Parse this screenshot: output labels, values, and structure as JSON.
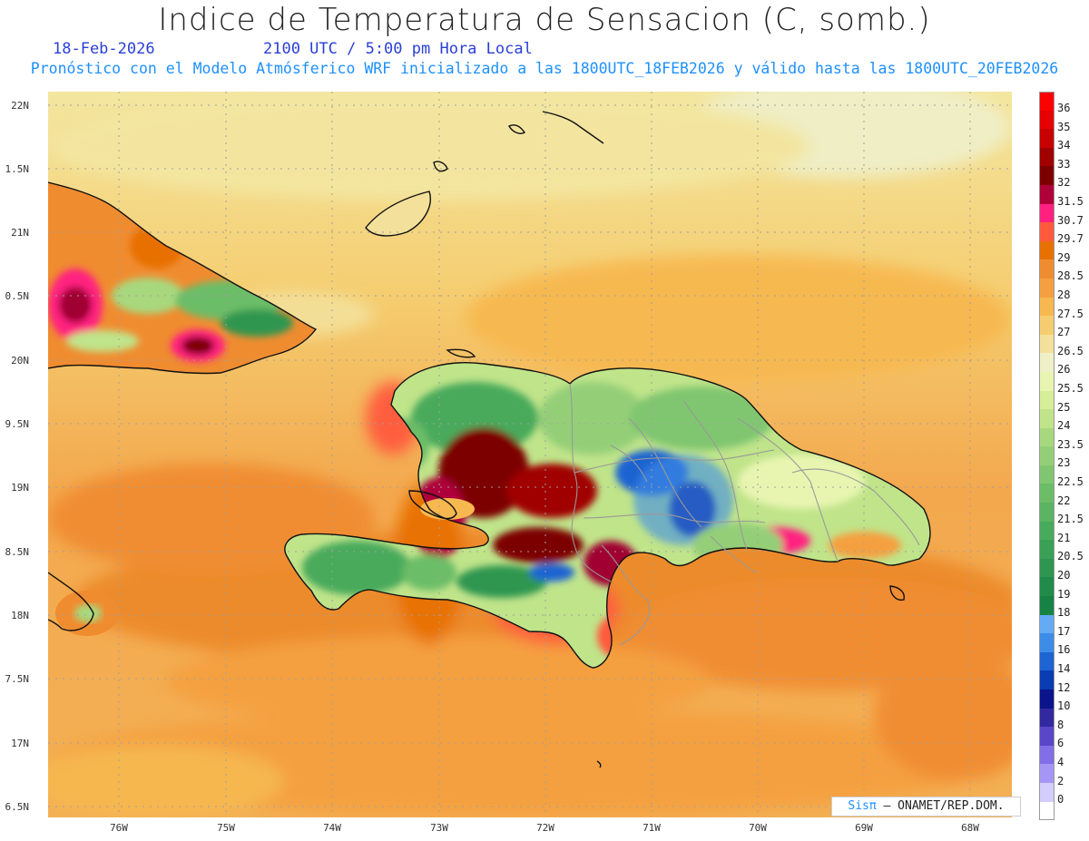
{
  "title": "Indice de Temperatura de Sensacion (C, somb.)",
  "date": "18-Feb-2026",
  "time": "2100 UTC / 5:00 pm Hora Local",
  "model_line": "Pronóstico con el Modelo Atmósferico WRF inicializado a las 1800UTC_18FEB2026 y válido hasta las  1800UTC_20FEB2026",
  "lat_labels": [
    "22N",
    "1.5N",
    "21N",
    "0.5N",
    "20N",
    "9.5N",
    "19N",
    "8.5N",
    "18N",
    "7.5N",
    "17N",
    "6.5N"
  ],
  "lon_labels": [
    "76W",
    "75W",
    "74W",
    "73W",
    "72W",
    "71W",
    "70W",
    "69W",
    "68W"
  ],
  "colorbar": [
    {
      "label": "36",
      "color": "#ff0000"
    },
    {
      "label": "35",
      "color": "#e60000"
    },
    {
      "label": "34",
      "color": "#c80000"
    },
    {
      "label": "33",
      "color": "#a00000"
    },
    {
      "label": "32",
      "color": "#7d0000"
    },
    {
      "label": "31.5",
      "color": "#b0003a"
    },
    {
      "label": "30.7",
      "color": "#ff2080"
    },
    {
      "label": "29.7",
      "color": "#ff5a3c"
    },
    {
      "label": "29",
      "color": "#e87000"
    },
    {
      "label": "28.5",
      "color": "#f08c30"
    },
    {
      "label": "28",
      "color": "#f5a040"
    },
    {
      "label": "27.5",
      "color": "#f7b850"
    },
    {
      "label": "27",
      "color": "#f5cd70"
    },
    {
      "label": "26.5",
      "color": "#f3e09a"
    },
    {
      "label": "26",
      "color": "#efefc8"
    },
    {
      "label": "25.5",
      "color": "#e8f5b0"
    },
    {
      "label": "25",
      "color": "#d6ee98"
    },
    {
      "label": "24",
      "color": "#c0e48a"
    },
    {
      "label": "23.5",
      "color": "#a8d87e"
    },
    {
      "label": "23",
      "color": "#94cf78"
    },
    {
      "label": "22.5",
      "color": "#80c670"
    },
    {
      "label": "22",
      "color": "#6cbd68"
    },
    {
      "label": "21.5",
      "color": "#5ab462"
    },
    {
      "label": "21",
      "color": "#48aa5c"
    },
    {
      "label": "20.5",
      "color": "#3aa055"
    },
    {
      "label": "20",
      "color": "#2e9650"
    },
    {
      "label": "19",
      "color": "#218c4a"
    },
    {
      "label": "18",
      "color": "#168244"
    },
    {
      "label": "17",
      "color": "#64aaf5"
    },
    {
      "label": "16",
      "color": "#3c8ce8"
    },
    {
      "label": "14",
      "color": "#1e64d2"
    },
    {
      "label": "12",
      "color": "#0a3cb4"
    },
    {
      "label": "10",
      "color": "#0a148c"
    },
    {
      "label": "8",
      "color": "#3228a0"
    },
    {
      "label": "6",
      "color": "#5a46c8"
    },
    {
      "label": "4",
      "color": "#826ee6"
    },
    {
      "label": "2",
      "color": "#a596f5"
    },
    {
      "label": "0",
      "color": "#d2cdfa"
    },
    {
      "label": "",
      "color": "#ffffff"
    }
  ],
  "credit": {
    "sis": "Sisπ",
    "rest": "– ONAMET/REP.DOM."
  }
}
